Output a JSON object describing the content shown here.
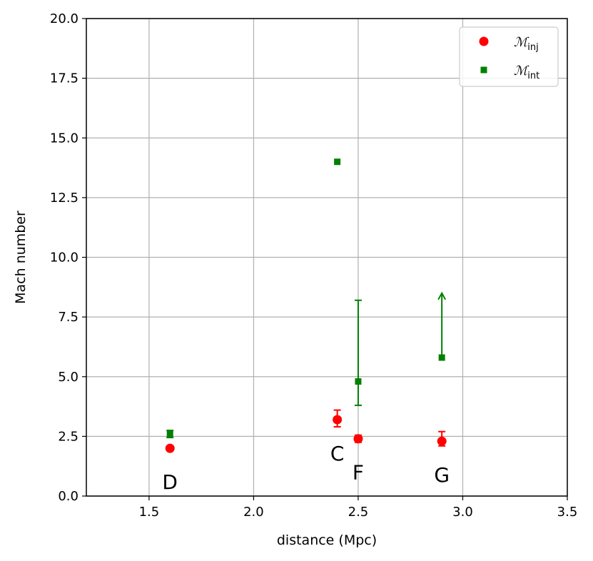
{
  "chart_data": {
    "type": "scatter",
    "xlabel": "distance (Mpc)",
    "ylabel": "Mach number",
    "xlim": [
      1.2,
      3.5
    ],
    "ylim": [
      0.0,
      20.0
    ],
    "xticks": [
      "1.5",
      "2.0",
      "2.5",
      "3.0",
      "3.5"
    ],
    "xtick_values": [
      1.5,
      2.0,
      2.5,
      3.0,
      3.5
    ],
    "yticks": [
      "0.0",
      "2.5",
      "5.0",
      "7.5",
      "10.0",
      "12.5",
      "15.0",
      "17.5",
      "20.0"
    ],
    "ytick_values": [
      0.0,
      2.5,
      5.0,
      7.5,
      10.0,
      12.5,
      15.0,
      17.5,
      20.0
    ],
    "grid": true,
    "legend_position": "top-right",
    "series": [
      {
        "name": "ℳ",
        "subscript": "inj",
        "marker": "circle",
        "color": "#ff0000",
        "points": [
          {
            "x": 1.6,
            "y": 2.0,
            "err_low": 0.0,
            "err_high": 0.0
          },
          {
            "x": 2.4,
            "y": 3.2,
            "err_low": 0.3,
            "err_high": 0.4
          },
          {
            "x": 2.5,
            "y": 2.4,
            "err_low": 0.15,
            "err_high": 0.15
          },
          {
            "x": 2.9,
            "y": 2.3,
            "err_low": 0.2,
            "err_high": 0.4
          }
        ]
      },
      {
        "name": "ℳ",
        "subscript": "int",
        "marker": "square",
        "color": "#008000",
        "points": [
          {
            "x": 1.6,
            "y": 2.6,
            "err_low": 0.15,
            "err_high": 0.15
          },
          {
            "x": 2.4,
            "y": 14.0,
            "err_low": 0.0,
            "err_high": 0.0
          },
          {
            "x": 2.5,
            "y": 4.8,
            "err_low": 1.0,
            "err_high": 3.4
          },
          {
            "x": 2.9,
            "y": 5.8,
            "lower_limit": true,
            "arrow_to": 8.5
          }
        ]
      }
    ],
    "annotations": [
      {
        "text": "D",
        "x": 1.6,
        "y": 0.6
      },
      {
        "text": "C",
        "x": 2.4,
        "y": 1.8
      },
      {
        "text": "F",
        "x": 2.5,
        "y": 1.0
      },
      {
        "text": "G",
        "x": 2.9,
        "y": 0.9
      }
    ]
  }
}
